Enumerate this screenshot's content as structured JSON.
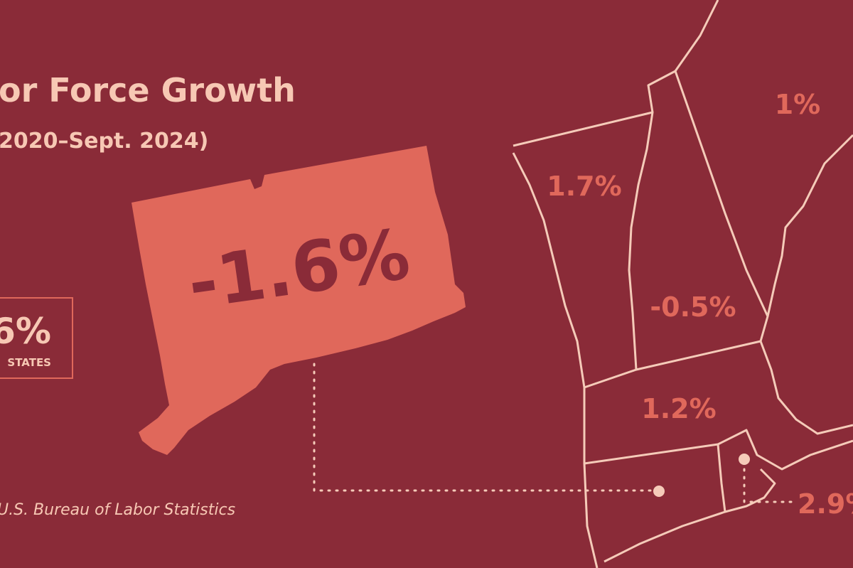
{
  "header": {
    "title": "or Force Growth",
    "subtitle": "2020–Sept. 2024)"
  },
  "callout": {
    "value": "6%",
    "label": "STATES"
  },
  "source": "U.S. Bureau of Labor Statistics",
  "highlight": {
    "label": "-1.6%"
  },
  "states": [
    {
      "label": "1%"
    },
    {
      "label": "1.7%"
    },
    {
      "label": "-0.5%"
    },
    {
      "label": "1.2%"
    },
    {
      "label": "2.9%"
    }
  ]
}
